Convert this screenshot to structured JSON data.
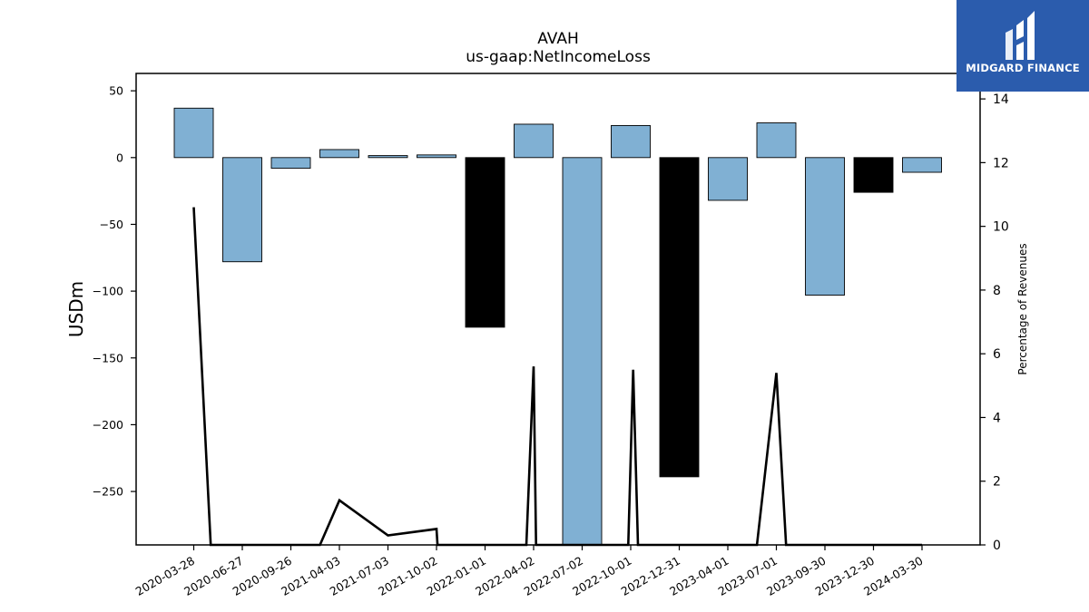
{
  "brand": {
    "name": "MIDGARD FINANCE",
    "bg_color": "#2b5cad",
    "icon": "midgard-logo-icon"
  },
  "chart_data": {
    "type": "bar",
    "title": "AVAH",
    "subtitle": "us-gaap:NetIncomeLoss",
    "ylabel": "USDm",
    "y2label": "Percentage of Revenues",
    "ylim": [
      -290,
      63
    ],
    "y2lim": [
      0,
      14.8
    ],
    "yticks": [
      50,
      0,
      -50,
      -100,
      -150,
      -200,
      -250
    ],
    "y2ticks": [
      0,
      2,
      4,
      6,
      8,
      10,
      12,
      14
    ],
    "grid": false,
    "colors": {
      "positive_bar": "#80b0d3",
      "highlight_bar": "#000000",
      "line": "#000000"
    },
    "categories": [
      "2020-03-28",
      "2020-06-27",
      "2020-09-26",
      "2021-04-03",
      "2021-07-03",
      "2021-10-02",
      "2022-01-01",
      "2022-04-02",
      "2022-07-02",
      "2022-10-01",
      "2022-12-31",
      "2023-04-01",
      "2023-07-01",
      "2023-09-30",
      "2023-12-30",
      "2024-03-30"
    ],
    "series": [
      {
        "type": "bar",
        "values": [
          37,
          -78,
          -8,
          6,
          1.5,
          2,
          -127,
          25,
          -290,
          24,
          -239,
          -32,
          26,
          -103,
          -26,
          -11
        ],
        "highlight": [
          false,
          false,
          false,
          false,
          false,
          false,
          true,
          false,
          false,
          false,
          true,
          false,
          false,
          false,
          true,
          false
        ]
      },
      {
        "type": "line",
        "axis": "right",
        "points": [
          [
            0,
            10.6
          ],
          [
            0.35,
            0
          ],
          [
            2.6,
            0
          ],
          [
            3.0,
            1.4
          ],
          [
            4.0,
            0.3
          ],
          [
            5.0,
            0.5
          ],
          [
            5.02,
            0
          ],
          [
            6.85,
            0
          ],
          [
            7.0,
            5.6
          ],
          [
            7.05,
            0
          ],
          [
            8.95,
            0
          ],
          [
            9.05,
            5.5
          ],
          [
            9.15,
            0
          ],
          [
            11.6,
            0
          ],
          [
            12.0,
            5.4
          ],
          [
            12.2,
            0
          ],
          [
            15,
            0
          ]
        ]
      }
    ]
  }
}
